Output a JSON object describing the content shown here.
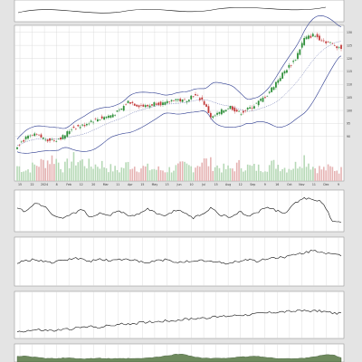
{
  "colors": {
    "background": "#e4e4e4",
    "panel": "#ffffff",
    "grid": "#d6d6d6",
    "up": "#2f8f3a",
    "down": "#c23b3b",
    "bands": "#2b3a8f",
    "sma": "#2b3a8f",
    "line": "#111111",
    "volume": "#e6b3b3",
    "volume_up": "#b6d9b6",
    "area": "#6f8a5e"
  },
  "chart_data": [
    {
      "type": "candlestick",
      "title": "",
      "x_labels": [
        "15",
        "22",
        "2024",
        "8",
        "Feb",
        "12",
        "20",
        "Mar",
        "11",
        "Apr",
        "15",
        "May",
        "13",
        "Jun",
        "10",
        "Jul",
        "15",
        "Aug",
        "12",
        "Sep",
        "9",
        "16",
        "Oct",
        "Nov",
        "11",
        "Dec",
        "9"
      ],
      "ylim": [
        84,
        132
      ],
      "y_ticks": [
        130,
        125,
        120,
        115,
        110,
        105,
        100,
        95,
        90
      ],
      "close_anchors": [
        86.5,
        89.5,
        90.5,
        89,
        88.5,
        90,
        93.5,
        94,
        96,
        97,
        98,
        99.5,
        103.5,
        102,
        101.5,
        103,
        102.5,
        104.5,
        103.5,
        106,
        104,
        97,
        99.5,
        101.5,
        99,
        100.5,
        103,
        106,
        111,
        115.5,
        119.5,
        127.5,
        129,
        127,
        125.5,
        124
      ],
      "volume": [
        14,
        10,
        15,
        18,
        22,
        12,
        20,
        18,
        14,
        16,
        12,
        10,
        16,
        13,
        12,
        11,
        10,
        12,
        14,
        13,
        19,
        16,
        12,
        11,
        15,
        13,
        12,
        14,
        16,
        12,
        14,
        22,
        13,
        11,
        12,
        10
      ]
    },
    {
      "type": "line",
      "title": "",
      "values": [
        55,
        48,
        72,
        60,
        34,
        28,
        42,
        54,
        30,
        46,
        38,
        52,
        36,
        40,
        56,
        44,
        34,
        52,
        48,
        30,
        42,
        60,
        38,
        32,
        48,
        36,
        46,
        62,
        50,
        44,
        70,
        86,
        82,
        74,
        24,
        20
      ]
    },
    {
      "type": "line",
      "title": "",
      "values": [
        46,
        52,
        55,
        50,
        47,
        53,
        57,
        55,
        51,
        56,
        52,
        54,
        57,
        50,
        46,
        52,
        54,
        49,
        51,
        48,
        53,
        50,
        47,
        46,
        52,
        55,
        50,
        57,
        59,
        61,
        65,
        70,
        75,
        72,
        66,
        63
      ]
    },
    {
      "type": "line",
      "title": "",
      "values": [
        10,
        12,
        14,
        13,
        12,
        15,
        17,
        20,
        22,
        21,
        24,
        27,
        29,
        30,
        33,
        34,
        36,
        37,
        39,
        41,
        43,
        44,
        46,
        48,
        50,
        51,
        53,
        55,
        57,
        58,
        59,
        60,
        60,
        59,
        55,
        53
      ]
    },
    {
      "type": "area",
      "title": "",
      "values": [
        22,
        28,
        15,
        8,
        5,
        10,
        8,
        5,
        6,
        8,
        5,
        4,
        6,
        5,
        10,
        16,
        26,
        38,
        42,
        20,
        10,
        6,
        8,
        12,
        16,
        22,
        24,
        14,
        8,
        6,
        4,
        10,
        20,
        32,
        38,
        12
      ]
    }
  ]
}
